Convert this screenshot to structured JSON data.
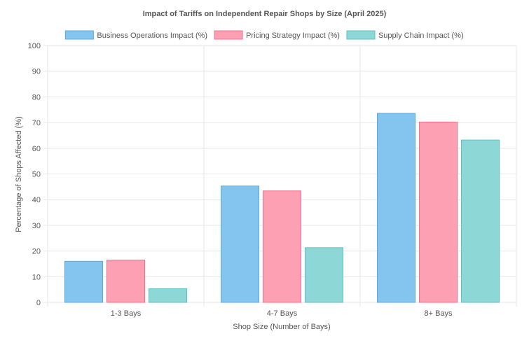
{
  "chart_data": {
    "type": "bar",
    "title": "Impact of Tariffs on Independent Repair Shops by Size (April 2025)",
    "xlabel": "Shop Size (Number of Bays)",
    "ylabel": "Percentage of Shops Affected (%)",
    "categories": [
      "1-3 Bays",
      "4-7 Bays",
      "8+ Bays"
    ],
    "ylim": [
      0,
      100
    ],
    "yticks": [
      0,
      10,
      20,
      30,
      40,
      50,
      60,
      70,
      80,
      90,
      100
    ],
    "grid": true,
    "legend_position": "top",
    "series": [
      {
        "name": "Business Operations Impact (%)",
        "values": [
          16,
          45.3,
          73.6
        ],
        "fill": "#84c5f0",
        "stroke": "#59a9e3"
      },
      {
        "name": "Pricing Strategy Impact (%)",
        "values": [
          16.5,
          43.4,
          70.2
        ],
        "fill": "#fea0b4",
        "stroke": "#f5708c"
      },
      {
        "name": "Supply Chain Impact (%)",
        "values": [
          5.3,
          21.3,
          63.2
        ],
        "fill": "#8dd8d7",
        "stroke": "#5cc2c2"
      }
    ]
  }
}
